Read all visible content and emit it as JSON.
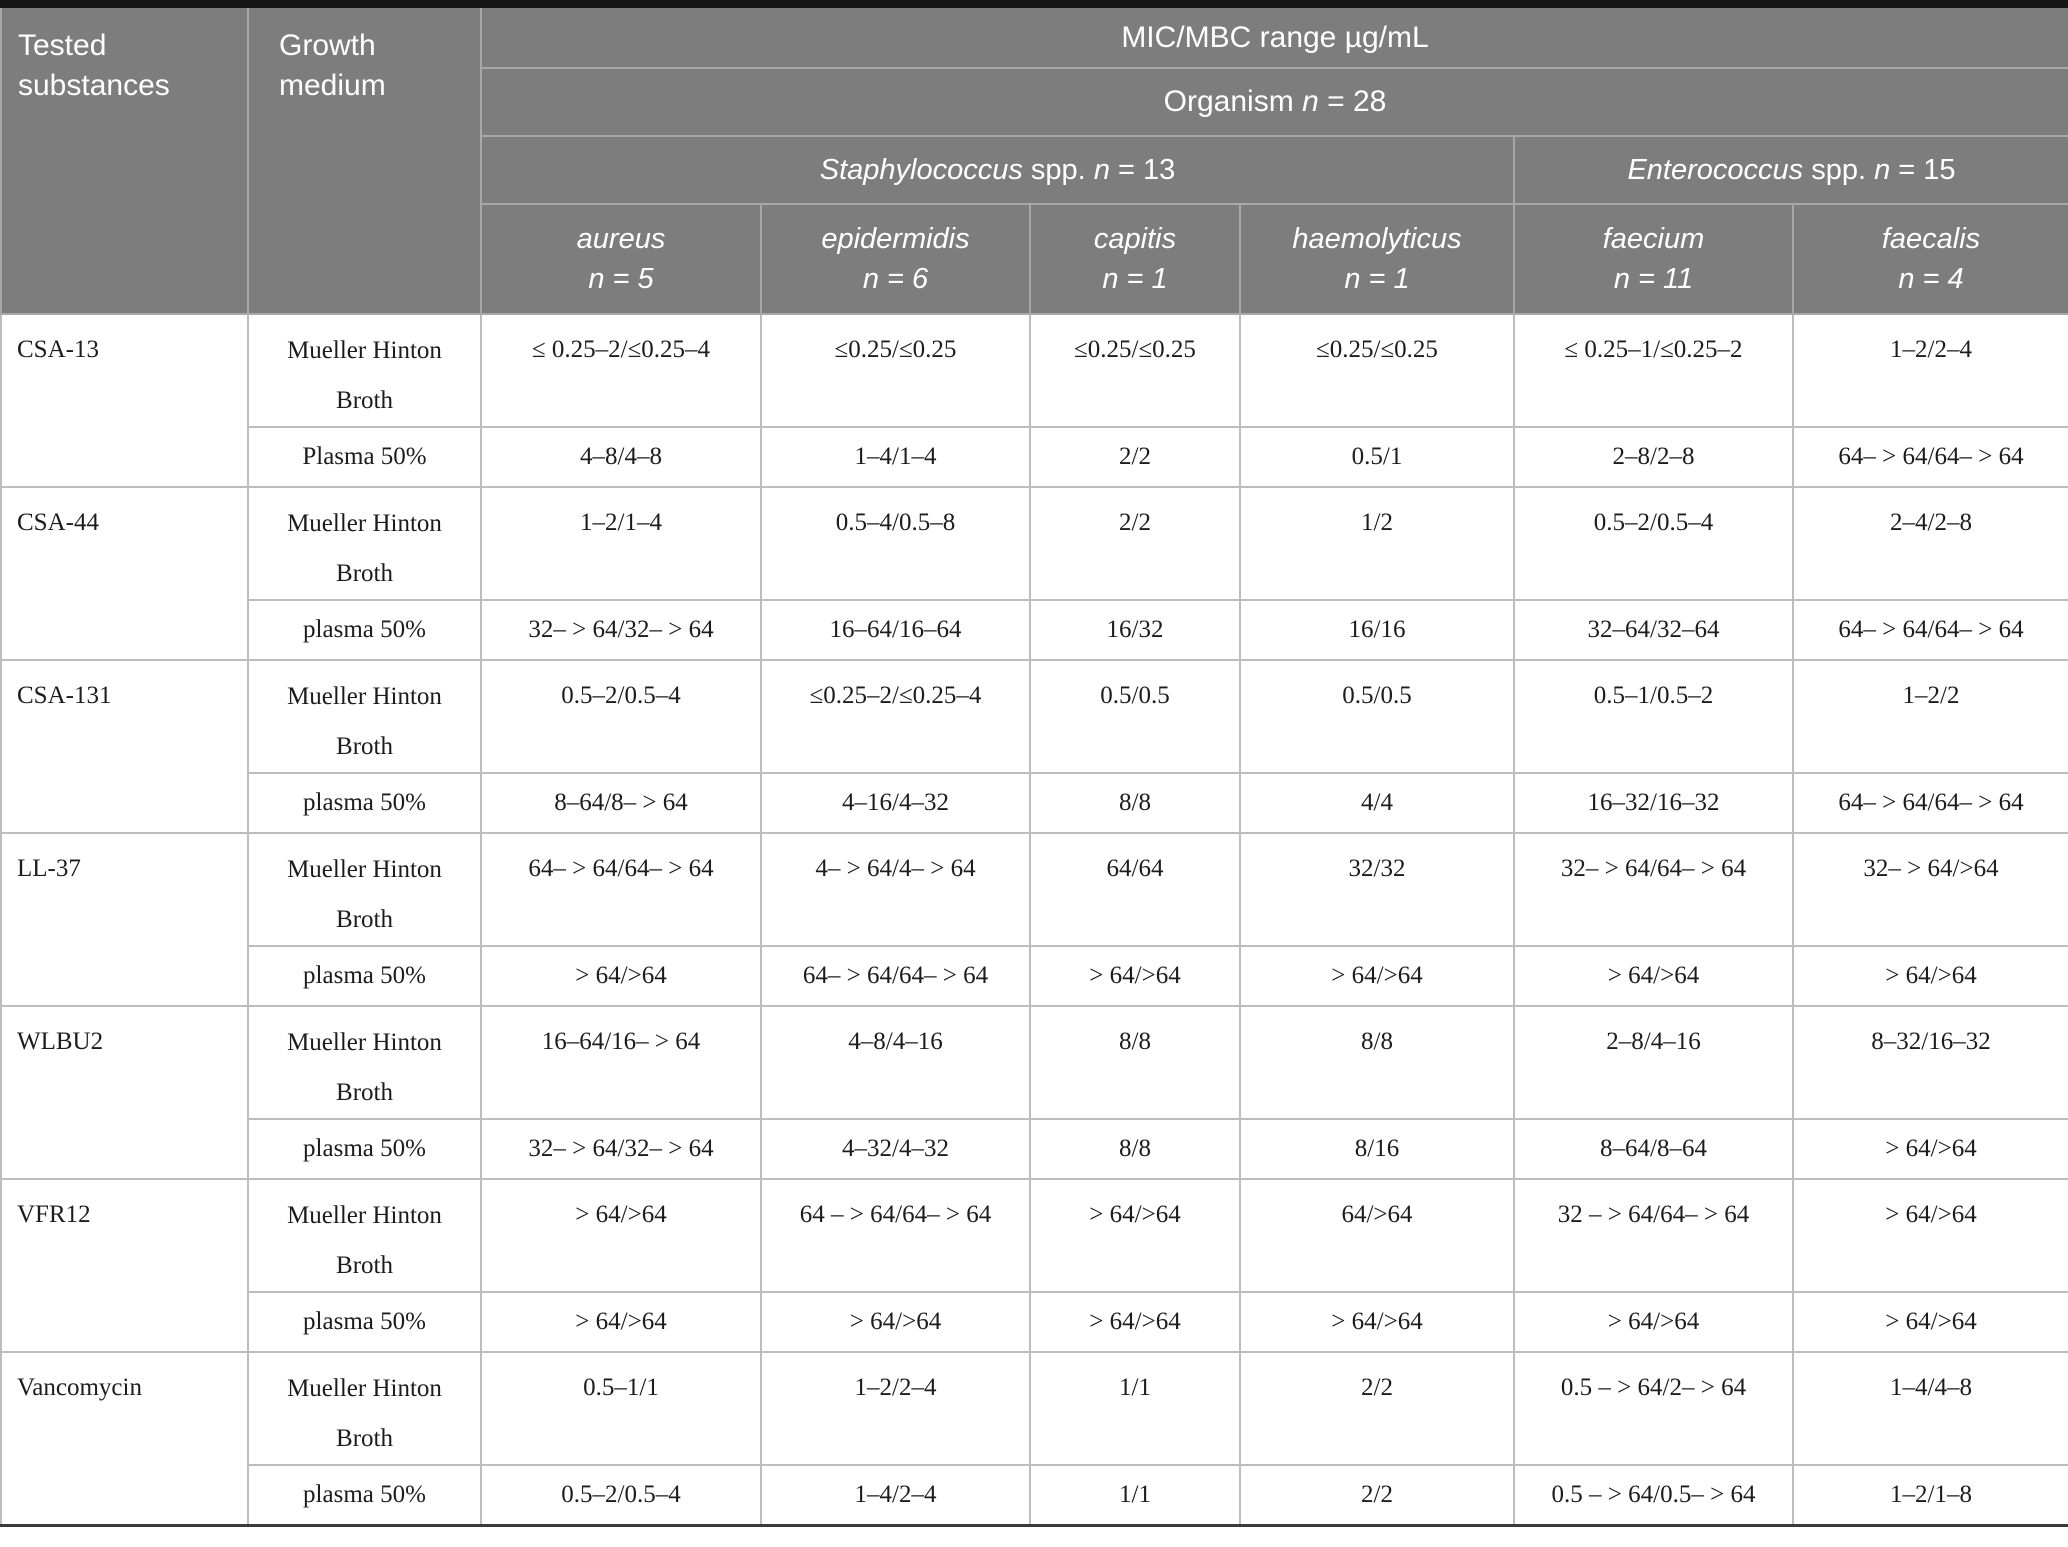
{
  "header": {
    "tested_substances": "Tested substances",
    "growth_medium": "Growth medium",
    "mic_mbc_title": "MIC/MBC range µg/mL",
    "organism": {
      "pre": "Organism",
      "n": "n",
      "eq": "= 28"
    },
    "groups": [
      {
        "genus": "Staphylococcus",
        "spp": "spp.",
        "n": "n",
        "eq": "= 13"
      },
      {
        "genus": "Enterococcus",
        "spp": "spp.",
        "n": "n",
        "eq": "= 15"
      }
    ],
    "species": [
      {
        "name": "aureus",
        "count": "n = 5"
      },
      {
        "name": "epidermidis",
        "count": "n = 6"
      },
      {
        "name": "capitis",
        "count": "n = 1"
      },
      {
        "name": "haemolyticus",
        "count": "n = 1"
      },
      {
        "name": "faecium",
        "count": "n = 11"
      },
      {
        "name": "faecalis",
        "count": "n = 4"
      }
    ]
  },
  "body": {
    "substances": [
      {
        "name": "CSA-13",
        "rows": [
          {
            "medium": "Mueller Hinton Broth",
            "values": [
              "≤ 0.25–2/≤0.25–4",
              "≤0.25/≤0.25",
              "≤0.25/≤0.25",
              "≤0.25/≤0.25",
              "≤ 0.25–1/≤0.25–2",
              "1–2/2–4"
            ]
          },
          {
            "medium": "Plasma 50%",
            "values": [
              "4–8/4–8",
              "1–4/1–4",
              "2/2",
              "0.5/1",
              "2–8/2–8",
              "64– > 64/64– > 64"
            ]
          }
        ]
      },
      {
        "name": "CSA-44",
        "rows": [
          {
            "medium": "Mueller Hinton Broth",
            "values": [
              "1–2/1–4",
              "0.5–4/0.5–8",
              "2/2",
              "1/2",
              "0.5–2/0.5–4",
              "2–4/2–8"
            ]
          },
          {
            "medium": "plasma 50%",
            "values": [
              "32– > 64/32– > 64",
              "16–64/16–64",
              "16/32",
              "16/16",
              "32–64/32–64",
              "64– > 64/64– > 64"
            ]
          }
        ]
      },
      {
        "name": "CSA-131",
        "rows": [
          {
            "medium": "Mueller Hinton Broth",
            "values": [
              "0.5–2/0.5–4",
              "≤0.25–2/≤0.25–4",
              "0.5/0.5",
              "0.5/0.5",
              "0.5–1/0.5–2",
              "1–2/2"
            ]
          },
          {
            "medium": "plasma 50%",
            "values": [
              "8–64/8– > 64",
              "4–16/4–32",
              "8/8",
              "4/4",
              "16–32/16–32",
              "64– > 64/64– > 64"
            ]
          }
        ]
      },
      {
        "name": "LL-37",
        "rows": [
          {
            "medium": "Mueller Hinton Broth",
            "values": [
              "64– > 64/64– > 64",
              "4– > 64/4– > 64",
              "64/64",
              "32/32",
              "32– > 64/64– > 64",
              "32– > 64/>64"
            ]
          },
          {
            "medium": "plasma 50%",
            "values": [
              "> 64/>64",
              "64– > 64/64– > 64",
              "> 64/>64",
              "> 64/>64",
              "> 64/>64",
              "> 64/>64"
            ]
          }
        ]
      },
      {
        "name": "WLBU2",
        "rows": [
          {
            "medium": "Mueller Hinton Broth",
            "values": [
              "16–64/16– > 64",
              "4–8/4–16",
              "8/8",
              "8/8",
              "2–8/4–16",
              "8–32/16–32"
            ]
          },
          {
            "medium": "plasma 50%",
            "values": [
              "32– > 64/32– > 64",
              "4–32/4–32",
              "8/8",
              "8/16",
              "8–64/8–64",
              "> 64/>64"
            ]
          }
        ]
      },
      {
        "name": "VFR12",
        "rows": [
          {
            "medium": "Mueller Hinton Broth",
            "values": [
              "> 64/>64",
              "64 – > 64/64– > 64",
              "> 64/>64",
              "64/>64",
              "32 – > 64/64– > 64",
              "> 64/>64"
            ]
          },
          {
            "medium": "plasma 50%",
            "values": [
              "> 64/>64",
              "> 64/>64",
              "> 64/>64",
              "> 64/>64",
              "> 64/>64",
              "> 64/>64"
            ]
          }
        ]
      },
      {
        "name": "Vancomycin",
        "rows": [
          {
            "medium": "Mueller Hinton Broth",
            "values": [
              "0.5–1/1",
              "1–2/2–4",
              "1/1",
              "2/2",
              "0.5 – > 64/2– > 64",
              "1–4/4–8"
            ]
          },
          {
            "medium": "plasma 50%",
            "values": [
              "0.5–2/0.5–4",
              "1–4/2–4",
              "1/1",
              "2/2",
              "0.5 – > 64/0.5– > 64",
              "1–2/1–8"
            ]
          }
        ]
      }
    ]
  },
  "colors": {
    "header_bg": "#7d7d7d",
    "header_border": "#a8a8a8",
    "body_border": "#bdbdbd",
    "top_bar": "#161616",
    "bottom_bar": "#3a3a3a"
  }
}
